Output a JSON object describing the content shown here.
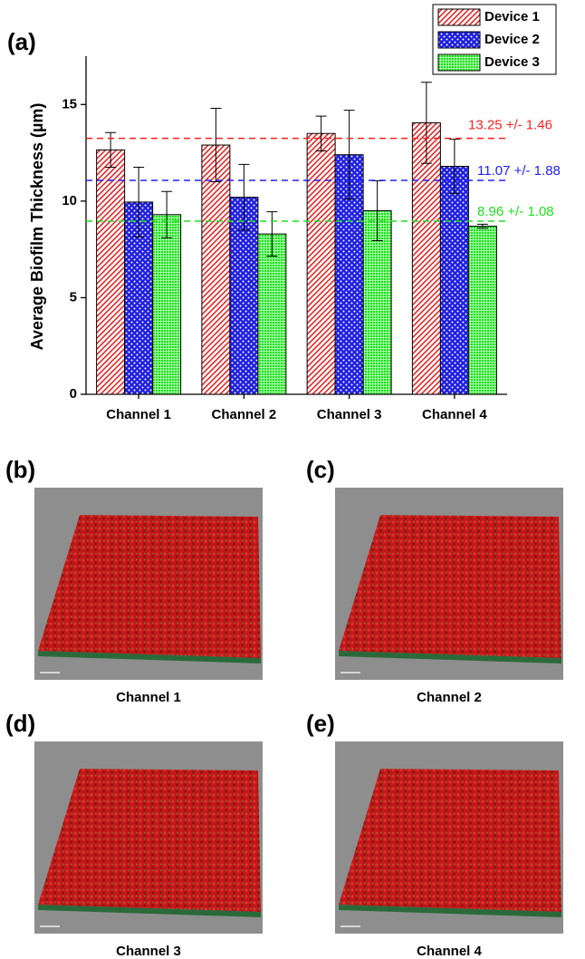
{
  "chart_data": {
    "type": "bar",
    "panel_label": "(a)",
    "y_label": "Average Biofilm Thickness (µm)",
    "categories": [
      "Channel 1",
      "Channel 2",
      "Channel 3",
      "Channel 4"
    ],
    "series": [
      {
        "name": "Device 1",
        "color": "#e02a2a",
        "values": [
          12.65,
          12.9,
          13.5,
          14.05
        ],
        "errors": [
          0.9,
          1.9,
          0.9,
          2.1
        ]
      },
      {
        "name": "Device 2",
        "color": "#1f1fe0",
        "values": [
          9.95,
          10.2,
          12.4,
          11.8
        ],
        "errors": [
          1.8,
          1.7,
          2.3,
          1.4
        ]
      },
      {
        "name": "Device 3",
        "color": "#1ee01e",
        "values": [
          9.3,
          8.3,
          9.5,
          8.7
        ],
        "errors": [
          1.2,
          1.15,
          1.55,
          0.1
        ]
      }
    ],
    "reference_lines": [
      {
        "value": 13.25,
        "label": "13.25 +/- 1.46",
        "color": "#ff2020"
      },
      {
        "value": 11.07,
        "label": "11.07 +/- 1.88",
        "color": "#2020ff"
      },
      {
        "value": 8.96,
        "label": "8.96 +/- 1.08",
        "color": "#20e020"
      }
    ],
    "ylim": [
      0,
      17.5
    ],
    "yticks": [
      0,
      5,
      10,
      15
    ],
    "legend": "upper right"
  },
  "panels": [
    {
      "label": "(b)",
      "caption": "Channel 1"
    },
    {
      "label": "(c)",
      "caption": "Channel 2"
    },
    {
      "label": "(d)",
      "caption": "Channel 3"
    },
    {
      "label": "(e)",
      "caption": "Channel 4"
    }
  ]
}
